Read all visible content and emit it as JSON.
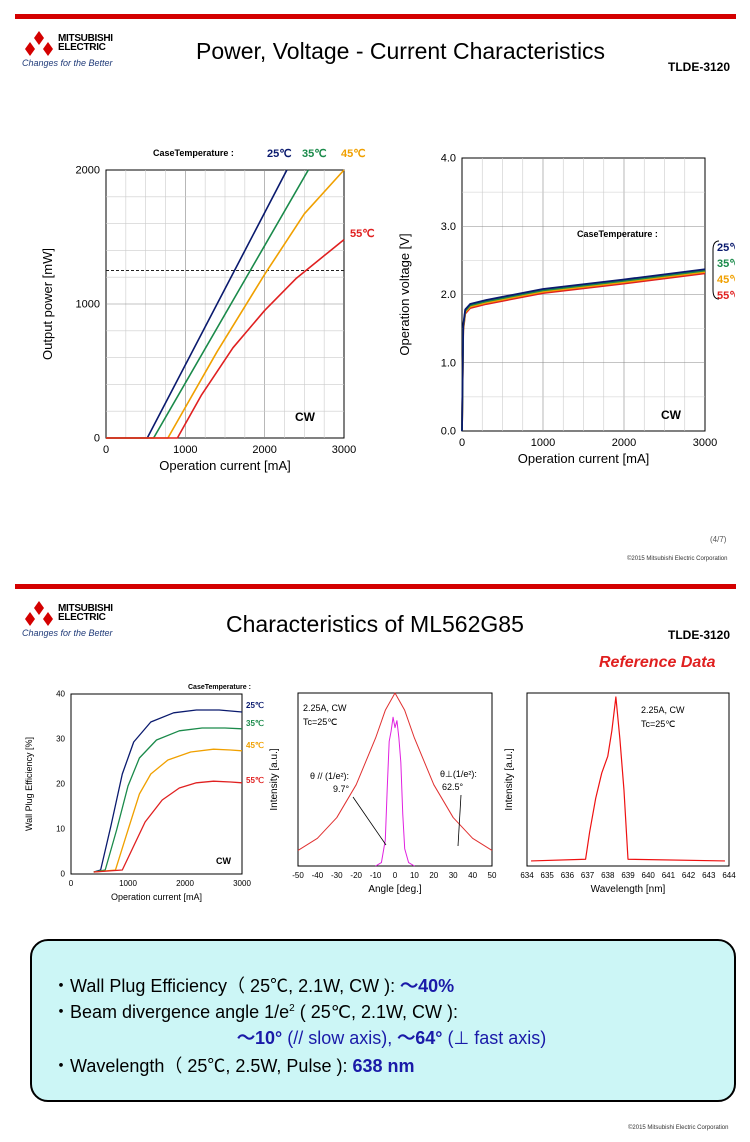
{
  "slide1": {
    "brand": {
      "name_line1": "MITSUBISHI",
      "name_line2": "ELECTRIC",
      "tagline": "Changes for the Better"
    },
    "title": "Power, Voltage - Current Characteristics",
    "doc_id": "TLDE-3120",
    "page": "(4/7)",
    "copyright": "©2015 Mitsubishi Electric Corporation"
  },
  "slide2": {
    "brand": {
      "name_line1": "MITSUBISHI",
      "name_line2": "ELECTRIC",
      "tagline": "Changes for the Better"
    },
    "title": "Characteristics of ML562G85",
    "doc_id": "TLDE-3120",
    "reference": "Reference Data",
    "copyright": "©2015 Mitsubishi Electric Corporation"
  },
  "summary": {
    "line1_text": "・Wall Plug Efficiency（ 25℃, 2.1W, CW ):",
    "line1_value": "～40%",
    "line2_text_a": "・Beam divergence angle 1/e",
    "line2_sup": "2",
    "line2_text_b": "( 25℃, 2.1W, CW ):",
    "line3_a": "～10°",
    "line3_b": "(//  slow axis),",
    "line3_c": "～64°",
    "line3_d": "(⊥   fast axis)",
    "line4_text": "・Wavelength（ 25℃, 2.5W, Pulse ):",
    "line4_value": "638 nm"
  },
  "colors": {
    "t25": "#0a1a6e",
    "t35": "#1a8a4a",
    "t45": "#f0a000",
    "t55": "#e02020",
    "magenta": "#e020e0"
  },
  "chart_data": [
    {
      "type": "line",
      "title": "",
      "xlabel": "Operation current [mA]",
      "ylabel": "Output power [mW]",
      "xlim": [
        0,
        3000
      ],
      "ylim": [
        0,
        2000
      ],
      "xticks": [
        "0",
        "1000",
        "2000",
        "3000"
      ],
      "yticks": [
        "0",
        "1000",
        "2000"
      ],
      "legend_title": "CaseTemperature :",
      "annotation": "CW",
      "dashed_level": 1300,
      "series": [
        {
          "name": "25℃",
          "x": [
            0,
            520,
            2280
          ],
          "y": [
            0,
            0,
            2080
          ]
        },
        {
          "name": "35℃",
          "x": [
            0,
            600,
            2550
          ],
          "y": [
            0,
            0,
            2080
          ]
        },
        {
          "name": "45℃",
          "x": [
            0,
            780,
            1400,
            2000,
            2500,
            3000
          ],
          "y": [
            0,
            0,
            670,
            1270,
            1740,
            2080
          ]
        },
        {
          "name": "55℃",
          "x": [
            0,
            900,
            1200,
            1600,
            2000,
            2400,
            2800,
            3000
          ],
          "y": [
            0,
            0,
            330,
            700,
            990,
            1240,
            1440,
            1540
          ]
        }
      ]
    },
    {
      "type": "line",
      "title": "",
      "xlabel": "Operation current [mA]",
      "ylabel": "Operation voltage [V]",
      "xlim": [
        0,
        3000
      ],
      "ylim": [
        0,
        4
      ],
      "xticks": [
        "0",
        "1000",
        "2000",
        "3000"
      ],
      "yticks": [
        "0.0",
        "1.0",
        "2.0",
        "3.0",
        "4.0"
      ],
      "legend_title": "CaseTemperature :",
      "annotation": "CW",
      "series": [
        {
          "name": "25℃",
          "x": [
            0,
            15,
            40,
            100,
            300,
            1000,
            2000,
            3000
          ],
          "y": [
            0,
            1.55,
            1.78,
            1.86,
            1.92,
            2.08,
            2.22,
            2.37
          ]
        },
        {
          "name": "35℃",
          "x": [
            0,
            15,
            40,
            100,
            300,
            1000,
            2000,
            3000
          ],
          "y": [
            0,
            1.53,
            1.76,
            1.84,
            1.9,
            2.06,
            2.2,
            2.35
          ]
        },
        {
          "name": "45℃",
          "x": [
            0,
            15,
            40,
            100,
            300,
            1000,
            2000,
            3000
          ],
          "y": [
            0,
            1.5,
            1.74,
            1.82,
            1.88,
            2.04,
            2.18,
            2.33
          ]
        },
        {
          "name": "55℃",
          "x": [
            0,
            15,
            40,
            100,
            300,
            1000,
            2000,
            3000
          ],
          "y": [
            0,
            1.47,
            1.72,
            1.8,
            1.86,
            2.02,
            2.16,
            2.31
          ]
        }
      ]
    },
    {
      "type": "line",
      "title": "",
      "xlabel": "Operation current [mA]",
      "ylabel": "Wall Plug Efficiency [%]",
      "xlim": [
        0,
        3000
      ],
      "ylim": [
        0,
        45
      ],
      "xticks": [
        "0",
        "1000",
        "2000",
        "3000"
      ],
      "yticks": [
        "0",
        "10",
        "20",
        "30",
        "40"
      ],
      "legend_title": "CaseTemperature :",
      "annotation": "CW",
      "series": [
        {
          "name": "25℃",
          "x": [
            400,
            520,
            700,
            900,
            1100,
            1400,
            1800,
            2200,
            2600,
            3000
          ],
          "y": [
            0.5,
            1,
            12,
            25,
            33,
            38,
            40.3,
            41,
            41,
            40.5
          ]
        },
        {
          "name": "35℃",
          "x": [
            400,
            600,
            800,
            1000,
            1200,
            1500,
            1900,
            2300,
            2700,
            3000
          ],
          "y": [
            0.5,
            1,
            11,
            22,
            29,
            33.5,
            35.8,
            36.5,
            36.5,
            36.3
          ]
        },
        {
          "name": "45℃",
          "x": [
            400,
            780,
            1000,
            1200,
            1400,
            1700,
            2100,
            2500,
            2800,
            3000
          ],
          "y": [
            0.5,
            1,
            11,
            20,
            25,
            28.5,
            30.5,
            31.2,
            31,
            30.8
          ]
        },
        {
          "name": "55℃",
          "x": [
            400,
            900,
            1100,
            1300,
            1600,
            1900,
            2200,
            2500,
            2800,
            3000
          ],
          "y": [
            0.5,
            1,
            7,
            13,
            18.5,
            21.5,
            22.8,
            23.2,
            23,
            22.8
          ]
        }
      ]
    },
    {
      "type": "line",
      "title": "",
      "xlabel": "Angle [deg.]",
      "ylabel": "Intensity [a.u.]",
      "xlim": [
        -50,
        50
      ],
      "ylim": [
        0,
        1
      ],
      "xticks": [
        "-50",
        "-40",
        "-30",
        "-20",
        "-10",
        "0",
        "10",
        "20",
        "30",
        "40",
        "50"
      ],
      "annotations": [
        "2.25A, CW",
        "Tc=25℃",
        "θ // (1/e²):",
        "9.7°",
        "θ⊥(1/e²):",
        "62.5°"
      ],
      "series": [
        {
          "name": "",
          "x": [
            -50,
            -40,
            -30,
            -20,
            -10,
            -5,
            0,
            5,
            10,
            20,
            30,
            40,
            50
          ],
          "y": [
            0.09,
            0.16,
            0.28,
            0.47,
            0.74,
            0.9,
            1.0,
            0.9,
            0.74,
            0.47,
            0.28,
            0.16,
            0.09
          ]
        },
        {
          "name": "",
          "x": [
            -10,
            -7,
            -5,
            -4,
            -3,
            -2,
            -1,
            0,
            1,
            2,
            3,
            4,
            5,
            7,
            10
          ],
          "y": [
            0,
            0.02,
            0.15,
            0.45,
            0.72,
            0.78,
            0.86,
            0.8,
            0.84,
            0.74,
            0.6,
            0.3,
            0.1,
            0.02,
            0
          ]
        }
      ]
    },
    {
      "type": "line",
      "title": "",
      "xlabel": "Wavelength [nm]",
      "ylabel": "Intensity [a.u.]",
      "xlim": [
        634,
        644
      ],
      "xticks": [
        "634",
        "635",
        "636",
        "637",
        "638",
        "639",
        "640",
        "641",
        "642",
        "643",
        "644"
      ],
      "annotations": [
        "2.25A, CW",
        "Tc=25℃"
      ],
      "series": [
        {
          "name": "",
          "x": [
            634.2,
            636.9,
            637.1,
            637.4,
            637.7,
            638.0,
            638.2,
            638.4,
            638.6,
            638.8,
            639.0,
            643.8
          ],
          "y": [
            0.03,
            0.04,
            0.2,
            0.4,
            0.55,
            0.65,
            0.8,
            1.0,
            0.75,
            0.45,
            0.04,
            0.03
          ]
        }
      ]
    }
  ]
}
